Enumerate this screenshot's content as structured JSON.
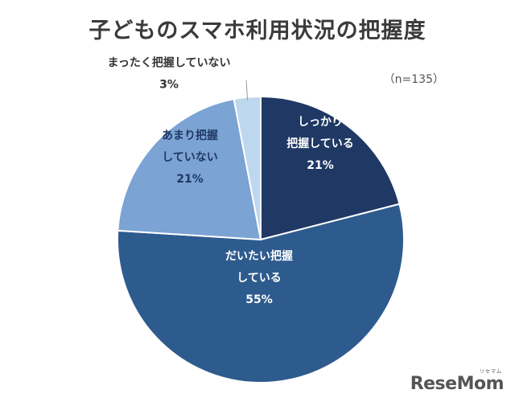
{
  "chart_data": {
    "type": "pie",
    "title": "子どものスマホ利用状況の把握度",
    "note": "（n=135）",
    "start_angle_deg": 0,
    "direction": "clockwise",
    "slices": [
      {
        "lines": [
          "しっかり",
          "把握している",
          "21%"
        ],
        "value": 21,
        "color": "#1f3864",
        "text_color": "#ffffff"
      },
      {
        "lines": [
          "だいたい把握",
          "している",
          "55%"
        ],
        "value": 55,
        "color": "#2e5b8e",
        "text_color": "#ffffff"
      },
      {
        "lines": [
          "あまり把握",
          "していない",
          "21%"
        ],
        "value": 21,
        "color": "#7ba3d4",
        "text_color": "#1f3864"
      },
      {
        "lines": [
          "まったく把握していない",
          "3%"
        ],
        "value": 3,
        "color": "#bdd7ee",
        "text_color": "#333333"
      }
    ]
  },
  "watermark": {
    "text": "ReseMom",
    "tag": "リセマム"
  }
}
